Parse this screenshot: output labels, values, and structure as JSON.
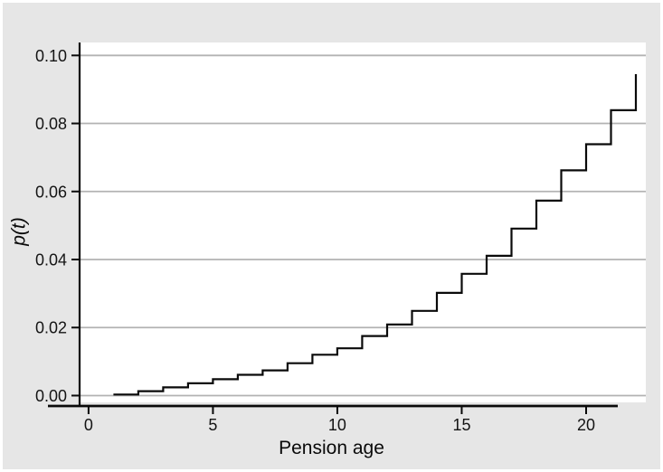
{
  "figure": {
    "background_color": "#e6e6e6",
    "plot_background_color": "#ffffff",
    "border_color": "#ffffff"
  },
  "chart_data": {
    "type": "line",
    "subtype": "step",
    "title": "",
    "xlabel": "Pension age",
    "ylabel": "p(t)",
    "x": [
      1,
      2,
      3,
      4,
      5,
      6,
      7,
      8,
      9,
      10,
      11,
      12,
      13,
      14,
      15,
      16,
      17,
      18,
      19,
      20,
      21,
      22
    ],
    "y": [
      0.0003,
      0.0013,
      0.0024,
      0.0036,
      0.0048,
      0.0061,
      0.0074,
      0.0095,
      0.012,
      0.0139,
      0.0175,
      0.0209,
      0.0249,
      0.0302,
      0.0358,
      0.0411,
      0.0491,
      0.0573,
      0.0662,
      0.0739,
      0.0839,
      0.0945
    ],
    "step_note": "each y value holds from its x until the next x; curve ends with a vertical rise to 0.0945 at x=22",
    "xlim": [
      -0.36,
      22.4
    ],
    "ylim": [
      -0.002,
      0.1038
    ],
    "x_ticks": [
      0,
      5,
      10,
      15,
      20
    ],
    "x_tick_labels": [
      "0",
      "5",
      "10",
      "15",
      "20"
    ],
    "y_ticks": [
      0.0,
      0.02,
      0.04,
      0.06,
      0.08,
      0.1
    ],
    "y_tick_labels": [
      "0.00",
      "0.02",
      "0.04",
      "0.06",
      "0.08",
      "0.10"
    ],
    "grid": "horizontal",
    "legend": "none",
    "line_color": "#0a0a0a",
    "axis_color": "#0a0a0a",
    "gridline_color": "#b3b3b3",
    "tick_label_color": "#141414"
  }
}
